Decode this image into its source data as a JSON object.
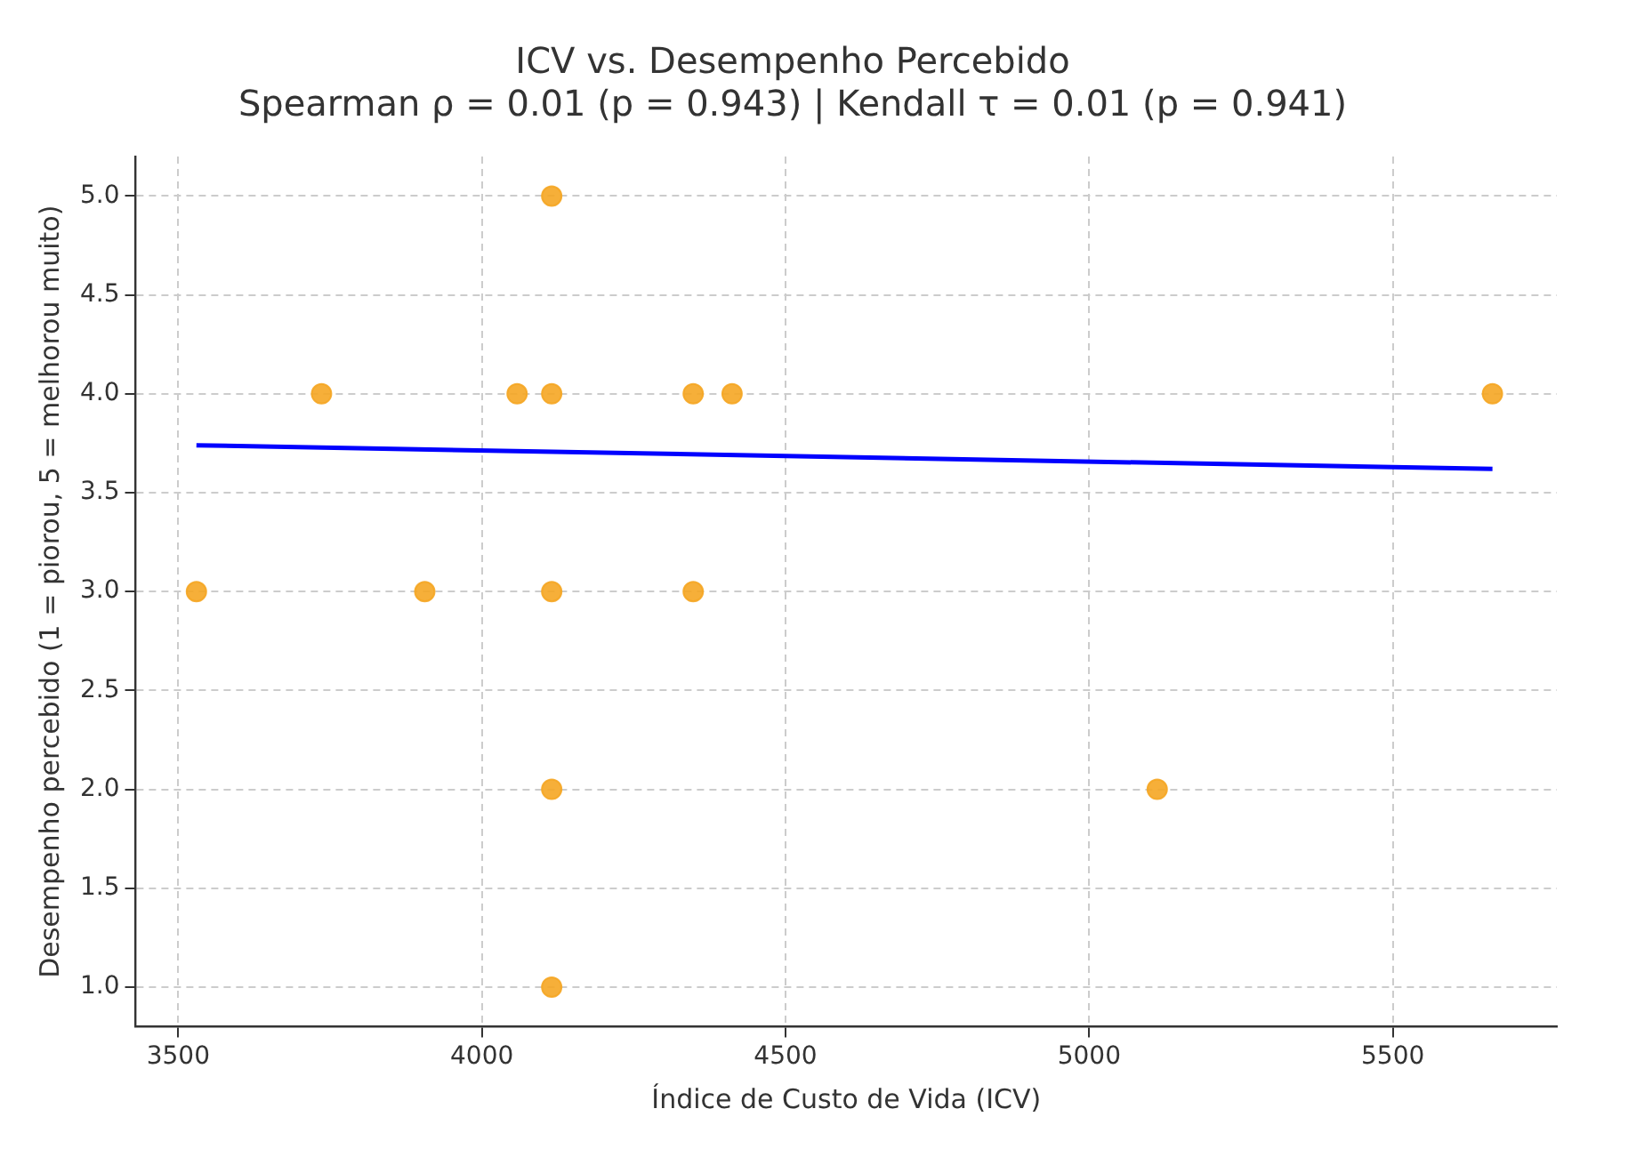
{
  "chart_data": {
    "type": "scatter",
    "title": "ICV vs. Desempenho Percebido",
    "subtitle": "Spearman ρ = 0.01 (p = 0.943) | Kendall τ = 0.01 (p = 0.941)",
    "xlabel": "Índice de Custo de Vida (ICV)",
    "ylabel": "Desempenho percebido (1 = piorou, 5 = melhorou muito)",
    "xlim": [
      3430,
      5770
    ],
    "xticks": [
      3500,
      4000,
      4500,
      5000,
      5500
    ],
    "ylim": [
      0.8,
      5.2
    ],
    "yticks": [
      {
        "value": 1,
        "label": "1.0"
      },
      {
        "value": 1.5,
        "label": "1.5"
      },
      {
        "value": 2,
        "label": "2.0"
      },
      {
        "value": 2.5,
        "label": "2.5"
      },
      {
        "value": 3,
        "label": "3.0"
      },
      {
        "value": 3.5,
        "label": "3.5"
      },
      {
        "value": 4,
        "label": "4.0"
      },
      {
        "value": 4.5,
        "label": "4.5"
      },
      {
        "value": 5,
        "label": "5.0"
      }
    ],
    "grid": true,
    "marker": "circle",
    "series": [
      {
        "type": "scatter",
        "color": "#f5a623",
        "x": [
          3530,
          3736,
          3906,
          4058,
          4115,
          4115,
          4115,
          4115,
          4115,
          4348,
          4348,
          4412,
          5112,
          5664
        ],
        "values": [
          3,
          4,
          3,
          4,
          5,
          4,
          3,
          2,
          1,
          4,
          3,
          4,
          2,
          4
        ]
      },
      {
        "type": "line",
        "color": "#0000ff",
        "line_style": "solid",
        "marker": "none",
        "x": [
          3530,
          5664
        ],
        "values": [
          3.74,
          3.62
        ]
      }
    ]
  }
}
